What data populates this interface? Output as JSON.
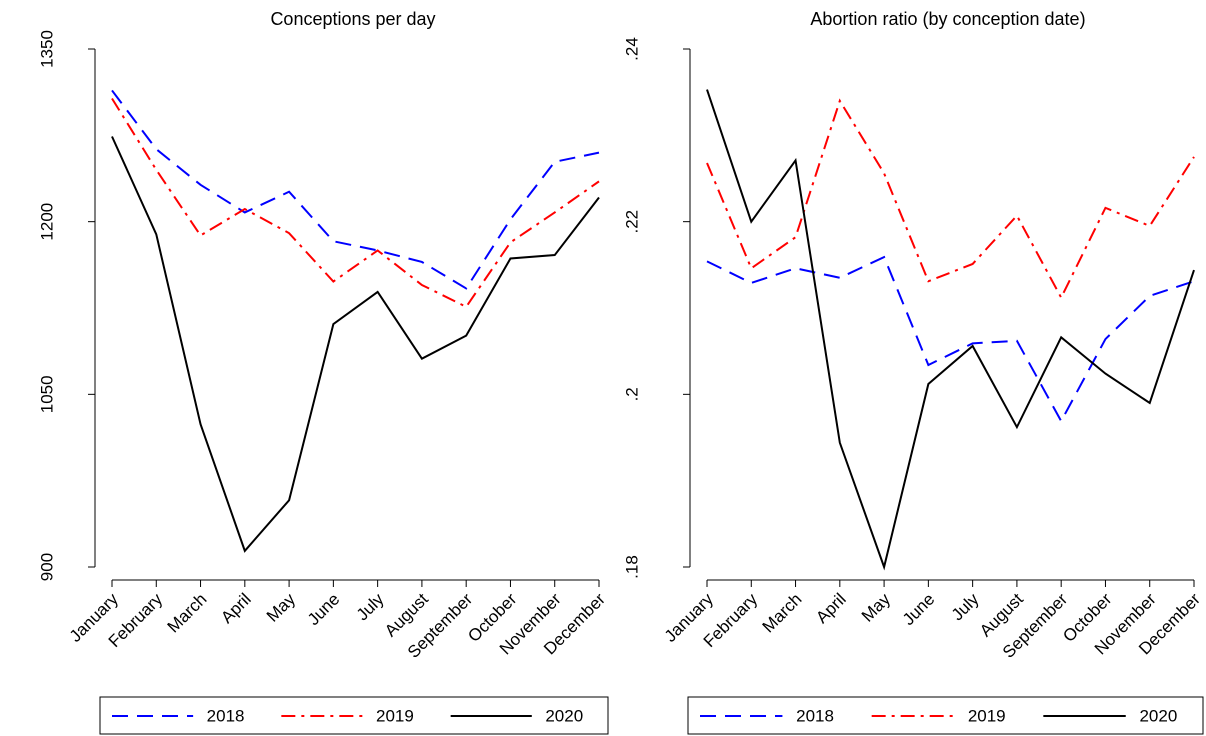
{
  "chart_data": [
    {
      "type": "line",
      "title": "Conceptions per day",
      "categories": [
        "January",
        "February",
        "March",
        "April",
        "May",
        "June",
        "July",
        "August",
        "September",
        "October",
        "November",
        "December"
      ],
      "ylim": [
        900,
        1350
      ],
      "yticks": [
        900,
        1050,
        1200,
        1350
      ],
      "series": [
        {
          "name": "2018",
          "color": "#0000ff",
          "dash": "dash",
          "values": [
            1314,
            1263,
            1232,
            1208,
            1226,
            1183,
            1175,
            1165,
            1142,
            1202,
            1252,
            1260
          ]
        },
        {
          "name": "2019",
          "color": "#ff0000",
          "dash": "dashdot",
          "values": [
            1307,
            1245,
            1188,
            1211,
            1190,
            1148,
            1175,
            1145,
            1126,
            1182,
            1208,
            1235
          ]
        },
        {
          "name": "2020",
          "color": "#000000",
          "dash": "solid",
          "values": [
            1274,
            1189,
            1024,
            914,
            958,
            1111,
            1139,
            1081,
            1101,
            1168,
            1171,
            1221
          ]
        }
      ]
    },
    {
      "type": "line",
      "title": "Abortion ratio (by conception date)",
      "categories": [
        "January",
        "February",
        "March",
        "April",
        "May",
        "June",
        "July",
        "August",
        "September",
        "October",
        "November",
        "December"
      ],
      "ylim": [
        0.18,
        0.24
      ],
      "yticks": [
        {
          "value": 0.18,
          "label": ".18"
        },
        {
          "value": 0.2,
          "label": ".2"
        },
        {
          "value": 0.22,
          "label": ".22"
        },
        {
          "value": 0.24,
          "label": ".24"
        }
      ],
      "series": [
        {
          "name": "2018",
          "color": "#0000ff",
          "dash": "dash",
          "values": [
            0.2154,
            0.2129,
            0.2146,
            0.2135,
            0.2159,
            0.2034,
            0.2059,
            0.2062,
            0.1969,
            0.2064,
            0.2114,
            0.2131
          ]
        },
        {
          "name": "2019",
          "color": "#ff0000",
          "dash": "dashdot",
          "values": [
            0.2268,
            0.2146,
            0.2182,
            0.234,
            0.2256,
            0.2131,
            0.2151,
            0.2207,
            0.2112,
            0.2216,
            0.2195,
            0.2275
          ]
        },
        {
          "name": "2020",
          "color": "#000000",
          "dash": "solid",
          "values": [
            0.2353,
            0.22,
            0.2271,
            0.1944,
            0.18,
            0.2012,
            0.2056,
            0.1962,
            0.2066,
            0.2024,
            0.199,
            0.2144
          ]
        }
      ]
    }
  ]
}
